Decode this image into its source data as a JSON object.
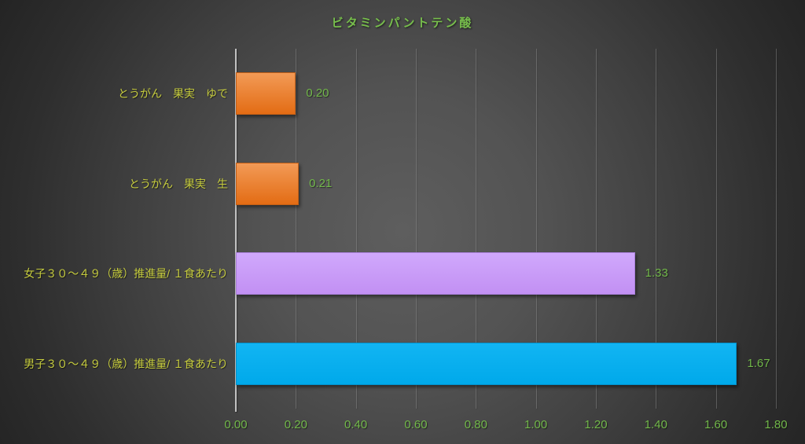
{
  "header": {
    "title": "ビタミンパントテン酸"
  },
  "colors": {
    "title_text": "#77be4c",
    "category_text": "#c6cc3e",
    "value_text": "#72b84a",
    "tick_text": "#72b84a",
    "axis_line": "#c2c2c2",
    "gridline": "#8f8f8f",
    "background_center": "#5e5e5e",
    "background_edge": "#242424"
  },
  "chart_data": {
    "type": "bar",
    "orientation": "horizontal",
    "title": "ビタミンパントテン酸",
    "categories": [
      "とうがん　果実　ゆで",
      "とうがん　果実　生",
      "女子３０～４９（歳）推進量/ １食あたり",
      "男子３０～４９（歳）推進量/ １食あたり"
    ],
    "values": [
      0.2,
      0.21,
      1.33,
      1.67
    ],
    "value_labels": [
      "0.20",
      "0.21",
      "1.33",
      "1.67"
    ],
    "bar_colors": [
      {
        "name": "orange",
        "top": "#f29a56",
        "bottom": "#e36c14",
        "border": "#c05e16"
      },
      {
        "name": "orange",
        "top": "#f29a56",
        "bottom": "#e36c14",
        "border": "#c05e16"
      },
      {
        "name": "purple",
        "top": "#d0a8fc",
        "bottom": "#c290f3",
        "border": "#a87fd8"
      },
      {
        "name": "blue",
        "top": "#12b5f3",
        "bottom": "#00a9ea",
        "border": "#0390c9"
      }
    ],
    "xlabel": "",
    "ylabel": "",
    "xlim": [
      0,
      1.8
    ],
    "tick_values": [
      0.0,
      0.2,
      0.4,
      0.6,
      0.8,
      1.0,
      1.2,
      1.4,
      1.6,
      1.8
    ],
    "tick_labels": [
      "0.00",
      "0.20",
      "0.40",
      "0.60",
      "0.80",
      "1.00",
      "1.20",
      "1.40",
      "1.60",
      "1.80"
    ],
    "grid": "vertical-major",
    "legend": "none",
    "data_labels": "outside-end"
  }
}
